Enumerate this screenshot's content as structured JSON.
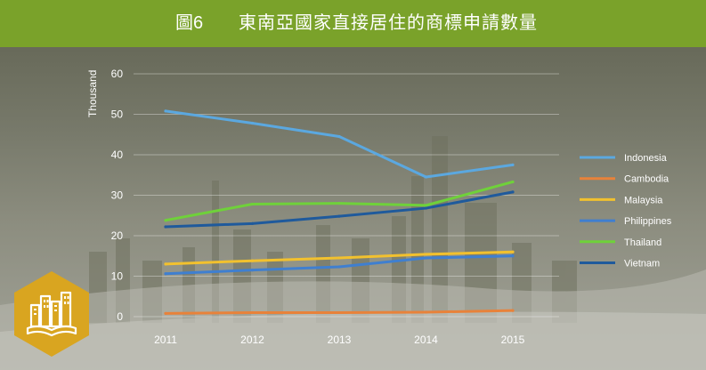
{
  "header": {
    "figure_number": "圖6",
    "title": "東南亞國家直接居住的商標申請數量"
  },
  "icons": {
    "badge": "city-buildings-book-icon"
  },
  "colors": {
    "header_bg": "#7aa22a",
    "badge_bg": "#d9a520"
  },
  "chart_data": {
    "type": "line",
    "title": "東南亞國家直接居住的商標申請數量",
    "xlabel": "",
    "ylabel": "Thousand",
    "x": [
      "2011",
      "2012",
      "2013",
      "2014",
      "2015"
    ],
    "ylim": [
      0,
      60
    ],
    "yticks": [
      "0",
      "10",
      "20",
      "30",
      "40",
      "50",
      "60"
    ],
    "grid": true,
    "legend_position": "right",
    "series": [
      {
        "name": "Indonesia",
        "color": "#5ba8e0",
        "values": [
          50.8,
          47.8,
          44.5,
          34.5,
          37.5
        ]
      },
      {
        "name": "Cambodia",
        "color": "#e8823a",
        "values": [
          0.8,
          1.0,
          1.0,
          1.1,
          1.5
        ]
      },
      {
        "name": "Malaysia",
        "color": "#f2c12e",
        "values": [
          13.0,
          13.8,
          14.5,
          15.4,
          16.0
        ]
      },
      {
        "name": "Philippines",
        "color": "#3f7fd0",
        "values": [
          10.6,
          11.5,
          12.3,
          14.5,
          15.0
        ]
      },
      {
        "name": "Thailand",
        "color": "#6fd13a",
        "values": [
          23.8,
          27.8,
          28.0,
          27.5,
          33.3
        ]
      },
      {
        "name": "Vietnam",
        "color": "#1f5a9c",
        "values": [
          22.2,
          23.0,
          24.8,
          26.8,
          30.8
        ]
      }
    ]
  }
}
